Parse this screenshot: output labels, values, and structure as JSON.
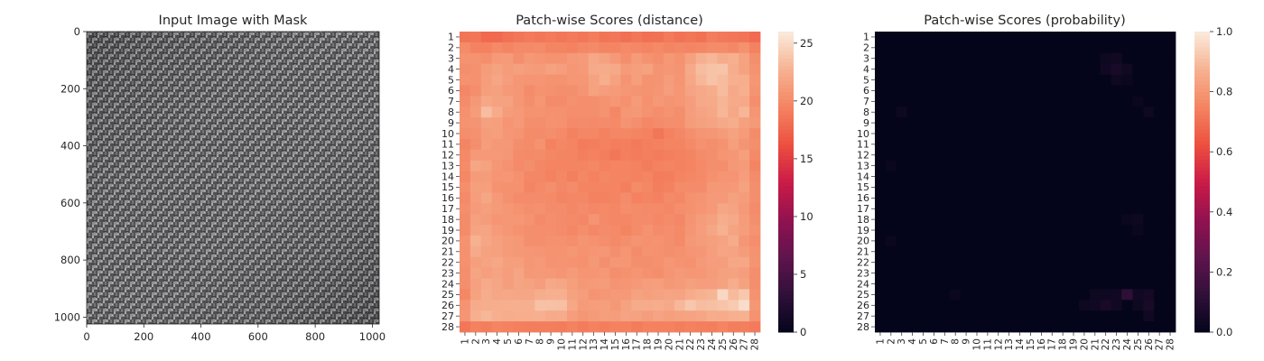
{
  "chart_data": [
    {
      "type": "image",
      "title": "Input Image with Mask",
      "xlim": [
        0,
        1024
      ],
      "ylim": [
        1024,
        0
      ],
      "xticks": [
        "0",
        "200",
        "400",
        "600",
        "800",
        "1000"
      ],
      "yticks": [
        "0",
        "200",
        "400",
        "600",
        "800",
        "1000"
      ],
      "texture": "woven fabric (gray)"
    },
    {
      "type": "heatmap",
      "title": "Patch-wise Scores (distance)",
      "rows": [
        "1",
        "2",
        "3",
        "4",
        "5",
        "6",
        "7",
        "8",
        "9",
        "10",
        "11",
        "12",
        "13",
        "14",
        "15",
        "16",
        "17",
        "18",
        "19",
        "20",
        "21",
        "22",
        "23",
        "24",
        "25",
        "26",
        "27",
        "28"
      ],
      "cols": [
        "1",
        "2",
        "3",
        "4",
        "5",
        "6",
        "7",
        "8",
        "9",
        "10",
        "11",
        "12",
        "13",
        "14",
        "15",
        "16",
        "17",
        "18",
        "19",
        "20",
        "21",
        "22",
        "23",
        "24",
        "25",
        "26",
        "27",
        "28"
      ],
      "colorbar": {
        "min": 0,
        "max": 26,
        "ticks": [
          "0",
          "5",
          "10",
          "15",
          "20",
          "25"
        ],
        "colormap": "rocket"
      },
      "values": [
        [
          18.5,
          18.6,
          17.8,
          17.8,
          18.3,
          18.6,
          18.9,
          18.7,
          18.9,
          18.6,
          18.9,
          18.7,
          19.1,
          18.5,
          18.7,
          18.2,
          18.6,
          18.2,
          18.3,
          18.9,
          18.4,
          18.7,
          18.3,
          19.1,
          18.8,
          18.6,
          18.5,
          17.9
        ],
        [
          20.0,
          19.4,
          19.3,
          19.9,
          19.6,
          19.9,
          19.9,
          20.0,
          19.6,
          19.6,
          19.4,
          19.8,
          19.9,
          19.6,
          19.6,
          19.9,
          19.7,
          19.6,
          19.9,
          19.6,
          19.7,
          19.6,
          19.7,
          20.0,
          20.0,
          19.8,
          20.4,
          19.3
        ],
        [
          20.5,
          20.5,
          20.3,
          21.0,
          21.1,
          20.2,
          20.9,
          20.7,
          20.5,
          20.5,
          21.0,
          21.1,
          22.0,
          21.6,
          21.0,
          20.2,
          21.1,
          20.5,
          20.2,
          20.9,
          20.5,
          21.5,
          22.6,
          23.0,
          22.3,
          22.6,
          21.7,
          20.3
        ],
        [
          20.3,
          20.4,
          21.2,
          21.6,
          21.2,
          21.5,
          21.2,
          21.1,
          21.6,
          21.3,
          20.8,
          21.0,
          22.2,
          22.3,
          22.1,
          21.1,
          21.4,
          21.6,
          20.6,
          20.8,
          20.6,
          22.2,
          23.4,
          23.7,
          23.8,
          22.4,
          21.6,
          20.5
        ],
        [
          20.5,
          20.4,
          21.3,
          21.9,
          21.3,
          20.8,
          20.7,
          20.7,
          20.5,
          20.5,
          20.8,
          20.8,
          21.6,
          22.5,
          21.6,
          20.6,
          21.4,
          20.5,
          20.6,
          21.2,
          20.7,
          22.0,
          23.1,
          23.7,
          23.3,
          22.6,
          22.5,
          20.8
        ],
        [
          19.8,
          20.2,
          21.4,
          21.5,
          21.0,
          20.8,
          20.1,
          20.5,
          20.4,
          20.3,
          20.3,
          20.6,
          21.6,
          21.3,
          21.1,
          20.8,
          20.6,
          20.5,
          20.7,
          21.3,
          20.8,
          21.7,
          22.1,
          22.4,
          23.3,
          22.1,
          22.6,
          20.6
        ],
        [
          20.1,
          20.9,
          22.0,
          21.6,
          21.6,
          20.8,
          20.3,
          20.8,
          20.0,
          20.1,
          20.4,
          20.2,
          20.3,
          20.5,
          20.8,
          20.4,
          21.1,
          20.4,
          20.9,
          20.6,
          20.8,
          21.3,
          22.1,
          22.2,
          22.9,
          22.2,
          22.1,
          20.2
        ],
        [
          20.4,
          21.2,
          23.4,
          22.3,
          21.2,
          21.0,
          20.5,
          20.5,
          20.4,
          20.4,
          20.2,
          20.3,
          20.2,
          20.5,
          19.8,
          20.8,
          20.9,
          20.5,
          20.2,
          20.5,
          20.3,
          21.3,
          21.7,
          22.0,
          23.0,
          22.0,
          23.0,
          20.7
        ],
        [
          20.5,
          20.6,
          21.5,
          21.4,
          20.7,
          21.0,
          20.3,
          20.2,
          20.5,
          20.4,
          19.9,
          20.1,
          19.9,
          20.1,
          19.9,
          20.6,
          20.3,
          19.7,
          20.1,
          20.2,
          20.2,
          21.2,
          21.5,
          21.7,
          22.1,
          22.4,
          21.5,
          21.0
        ],
        [
          20.2,
          20.4,
          21.2,
          21.4,
          20.8,
          20.6,
          20.0,
          20.1,
          20.2,
          19.9,
          19.3,
          19.8,
          19.7,
          19.3,
          19.7,
          19.7,
          19.6,
          19.4,
          18.6,
          19.4,
          19.7,
          20.3,
          20.7,
          20.8,
          21.1,
          21.6,
          21.1,
          20.0
        ],
        [
          19.6,
          20.2,
          21.3,
          20.9,
          20.9,
          20.2,
          20.0,
          20.5,
          19.3,
          19.7,
          19.5,
          19.0,
          19.1,
          19.3,
          19.1,
          19.2,
          18.9,
          19.2,
          19.3,
          19.6,
          19.5,
          19.9,
          20.4,
          20.3,
          20.5,
          21.4,
          20.6,
          20.3
        ],
        [
          19.9,
          21.0,
          21.0,
          21.0,
          20.8,
          20.1,
          19.9,
          20.0,
          19.7,
          19.6,
          19.6,
          19.2,
          19.4,
          19.1,
          18.7,
          19.2,
          19.0,
          19.2,
          19.0,
          19.2,
          19.3,
          19.6,
          20.0,
          20.3,
          20.7,
          20.8,
          21.4,
          19.9
        ],
        [
          20.0,
          21.9,
          21.6,
          20.8,
          20.5,
          19.9,
          20.3,
          19.8,
          19.5,
          19.5,
          19.6,
          19.6,
          19.8,
          19.3,
          19.5,
          19.5,
          19.4,
          19.0,
          19.4,
          19.5,
          19.4,
          19.5,
          19.9,
          20.3,
          20.2,
          20.9,
          21.1,
          19.6
        ],
        [
          19.8,
          21.1,
          21.2,
          20.7,
          20.8,
          20.4,
          19.8,
          19.7,
          19.3,
          19.8,
          19.2,
          19.7,
          19.3,
          19.8,
          19.5,
          19.6,
          19.3,
          19.5,
          19.0,
          19.1,
          19.5,
          19.7,
          19.9,
          20.4,
          20.7,
          20.6,
          21.3,
          20.1
        ],
        [
          20.2,
          21.4,
          21.4,
          20.5,
          20.4,
          20.4,
          19.6,
          19.9,
          20.3,
          19.8,
          20.1,
          19.6,
          19.5,
          19.5,
          19.5,
          19.2,
          20.0,
          19.7,
          19.1,
          19.3,
          20.0,
          20.1,
          20.1,
          20.9,
          20.9,
          21.0,
          21.6,
          20.3
        ],
        [
          19.9,
          21.3,
          21.9,
          21.0,
          20.4,
          20.0,
          20.1,
          20.1,
          19.9,
          19.6,
          19.7,
          19.7,
          19.4,
          19.4,
          19.6,
          20.1,
          19.4,
          19.6,
          19.4,
          19.9,
          19.8,
          20.4,
          20.6,
          21.0,
          21.0,
          21.5,
          21.2,
          20.3
        ],
        [
          20.3,
          21.1,
          21.4,
          21.1,
          20.8,
          20.5,
          20.2,
          20.4,
          20.1,
          20.1,
          19.8,
          20.1,
          19.7,
          19.9,
          19.7,
          20.2,
          20.0,
          19.9,
          19.9,
          19.7,
          20.2,
          20.4,
          20.7,
          21.0,
          21.9,
          21.7,
          21.0,
          20.1
        ],
        [
          20.0,
          21.5,
          21.2,
          20.7,
          20.8,
          20.8,
          20.5,
          19.9,
          20.2,
          20.1,
          19.9,
          19.8,
          20.6,
          19.9,
          19.7,
          19.7,
          20.0,
          20.1,
          19.8,
          20.0,
          19.8,
          20.6,
          21.2,
          21.5,
          22.4,
          22.1,
          21.2,
          20.3
        ],
        [
          20.0,
          21.7,
          21.8,
          21.1,
          20.8,
          20.5,
          20.3,
          20.2,
          20.2,
          20.1,
          19.8,
          20.2,
          19.8,
          20.1,
          19.9,
          19.6,
          20.0,
          20.5,
          20.0,
          20.2,
          19.9,
          20.7,
          21.3,
          21.9,
          22.7,
          21.7,
          21.3,
          20.5
        ],
        [
          20.5,
          22.7,
          21.9,
          21.5,
          21.1,
          20.9,
          20.3,
          20.3,
          20.4,
          20.4,
          20.2,
          20.6,
          20.4,
          20.2,
          19.9,
          20.3,
          20.6,
          20.4,
          20.5,
          20.3,
          19.9,
          20.9,
          21.2,
          21.4,
          21.7,
          22.3,
          20.8,
          20.2
        ],
        [
          20.4,
          22.2,
          21.6,
          21.5,
          21.1,
          20.9,
          20.8,
          20.7,
          20.5,
          20.5,
          20.8,
          20.5,
          20.7,
          20.8,
          20.3,
          20.7,
          20.1,
          20.5,
          20.4,
          20.3,
          20.4,
          20.7,
          20.8,
          21.3,
          21.8,
          21.7,
          21.2,
          20.5
        ],
        [
          20.4,
          21.4,
          21.7,
          22.0,
          21.4,
          21.4,
          20.8,
          21.0,
          20.5,
          20.6,
          20.5,
          20.4,
          20.9,
          20.3,
          20.8,
          20.8,
          20.3,
          20.2,
          20.4,
          20.8,
          20.5,
          20.4,
          21.0,
          21.3,
          21.3,
          22.0,
          22.0,
          20.6
        ],
        [
          20.2,
          21.8,
          21.4,
          21.7,
          21.3,
          21.8,
          20.9,
          21.0,
          20.9,
          20.7,
          21.1,
          20.7,
          20.7,
          20.9,
          20.2,
          20.4,
          20.7,
          20.4,
          20.2,
          20.7,
          21.0,
          20.8,
          20.8,
          21.2,
          21.5,
          21.6,
          21.3,
          20.2
        ],
        [
          20.3,
          21.5,
          22.2,
          21.9,
          21.3,
          21.8,
          21.6,
          21.3,
          22.1,
          21.9,
          21.4,
          20.9,
          21.1,
          21.2,
          20.6,
          20.7,
          21.0,
          21.3,
          21.4,
          20.9,
          21.1,
          21.5,
          21.3,
          21.3,
          21.6,
          22.4,
          21.6,
          20.3
        ],
        [
          19.8,
          21.6,
          22.4,
          21.9,
          22.0,
          21.9,
          21.9,
          22.4,
          22.6,
          22.6,
          21.6,
          21.3,
          20.6,
          20.8,
          21.0,
          21.0,
          21.6,
          21.4,
          21.6,
          21.8,
          21.7,
          22.3,
          22.7,
          22.9,
          24.9,
          23.2,
          24.0,
          20.5
        ],
        [
          20.6,
          22.3,
          22.4,
          22.5,
          22.6,
          22.6,
          22.6,
          23.6,
          23.6,
          23.5,
          22.0,
          21.1,
          21.3,
          21.4,
          20.9,
          21.6,
          22.3,
          22.3,
          22.4,
          22.1,
          23.1,
          23.9,
          23.4,
          23.5,
          23.8,
          24.1,
          25.2,
          20.8
        ],
        [
          20.7,
          22.6,
          23.1,
          22.6,
          22.4,
          22.5,
          22.5,
          22.6,
          22.2,
          22.3,
          21.3,
          20.8,
          21.1,
          21.4,
          21.3,
          21.7,
          21.6,
          21.3,
          21.7,
          21.4,
          21.6,
          21.7,
          21.9,
          22.4,
          22.3,
          22.6,
          22.7,
          20.5
        ],
        [
          18.7,
          19.3,
          19.1,
          19.5,
          19.3,
          19.2,
          19.1,
          19.1,
          19.1,
          19.0,
          19.3,
          19.0,
          19.4,
          19.1,
          19.4,
          19.3,
          19.0,
          19.3,
          19.3,
          19.3,
          19.1,
          19.3,
          19.2,
          19.1,
          19.5,
          19.1,
          19.2,
          18.9
        ]
      ]
    },
    {
      "type": "heatmap",
      "title": "Patch-wise Scores (probability)",
      "rows": [
        "1",
        "2",
        "3",
        "4",
        "5",
        "6",
        "7",
        "8",
        "9",
        "10",
        "11",
        "12",
        "13",
        "14",
        "15",
        "16",
        "17",
        "18",
        "19",
        "20",
        "21",
        "22",
        "23",
        "24",
        "25",
        "26",
        "27",
        "28"
      ],
      "cols": [
        "1",
        "2",
        "3",
        "4",
        "5",
        "6",
        "7",
        "8",
        "9",
        "10",
        "11",
        "12",
        "13",
        "14",
        "15",
        "16",
        "17",
        "18",
        "19",
        "20",
        "21",
        "22",
        "23",
        "24",
        "25",
        "26",
        "27",
        "28"
      ],
      "colorbar": {
        "min": 0,
        "max": 1,
        "ticks": [
          "0.0",
          "0.2",
          "0.4",
          "0.6",
          "0.8",
          "1.0"
        ],
        "colormap": "rocket"
      },
      "baseline": 0.002,
      "hotspots": [
        {
          "row": 3,
          "col": 22,
          "value": 0.03
        },
        {
          "row": 3,
          "col": 23,
          "value": 0.04
        },
        {
          "row": 4,
          "col": 22,
          "value": 0.04
        },
        {
          "row": 4,
          "col": 23,
          "value": 0.06
        },
        {
          "row": 4,
          "col": 24,
          "value": 0.04
        },
        {
          "row": 5,
          "col": 23,
          "value": 0.03
        },
        {
          "row": 5,
          "col": 24,
          "value": 0.02
        },
        {
          "row": 7,
          "col": 25,
          "value": 0.02
        },
        {
          "row": 8,
          "col": 3,
          "value": 0.03
        },
        {
          "row": 8,
          "col": 26,
          "value": 0.03
        },
        {
          "row": 13,
          "col": 2,
          "value": 0.02
        },
        {
          "row": 18,
          "col": 24,
          "value": 0.02
        },
        {
          "row": 18,
          "col": 25,
          "value": 0.03
        },
        {
          "row": 19,
          "col": 25,
          "value": 0.02
        },
        {
          "row": 20,
          "col": 2,
          "value": 0.02
        },
        {
          "row": 25,
          "col": 8,
          "value": 0.02
        },
        {
          "row": 25,
          "col": 21,
          "value": 0.03
        },
        {
          "row": 25,
          "col": 22,
          "value": 0.03
        },
        {
          "row": 25,
          "col": 23,
          "value": 0.04
        },
        {
          "row": 25,
          "col": 24,
          "value": 0.12
        },
        {
          "row": 25,
          "col": 25,
          "value": 0.04
        },
        {
          "row": 25,
          "col": 26,
          "value": 0.05
        },
        {
          "row": 26,
          "col": 20,
          "value": 0.03
        },
        {
          "row": 26,
          "col": 21,
          "value": 0.04
        },
        {
          "row": 26,
          "col": 22,
          "value": 0.06
        },
        {
          "row": 26,
          "col": 23,
          "value": 0.04
        },
        {
          "row": 26,
          "col": 25,
          "value": 0.03
        },
        {
          "row": 26,
          "col": 26,
          "value": 0.06
        },
        {
          "row": 27,
          "col": 26,
          "value": 0.04
        }
      ]
    }
  ]
}
